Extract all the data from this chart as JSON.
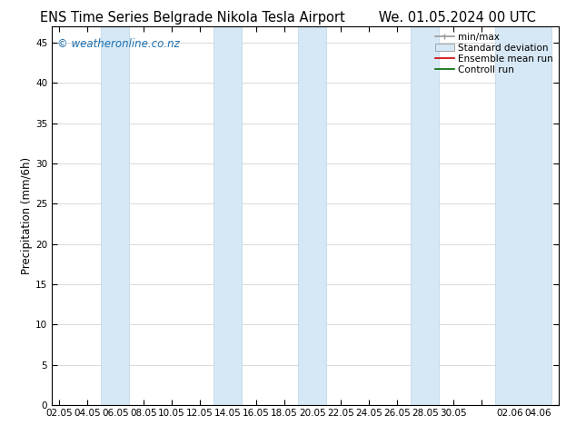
{
  "title_left": "ENS Time Series Belgrade Nikola Tesla Airport",
  "title_right": "We. 01.05.2024 00 UTC",
  "ylabel": "Precipitation (mm/6h)",
  "watermark": "© weatheronline.co.nz",
  "x_tick_labels": [
    "02.05",
    "04.05",
    "06.05",
    "08.05",
    "10.05",
    "12.05",
    "14.05",
    "16.05",
    "18.05",
    "20.05",
    "22.05",
    "24.05",
    "26.05",
    "28.05",
    "30.05",
    "",
    "02.06",
    "04.06"
  ],
  "x_tick_positions": [
    0,
    2,
    4,
    6,
    8,
    10,
    12,
    14,
    16,
    18,
    20,
    22,
    24,
    26,
    28,
    30,
    32,
    34
  ],
  "ylim": [
    0,
    47
  ],
  "yticks": [
    0,
    5,
    10,
    15,
    20,
    25,
    30,
    35,
    40,
    45
  ],
  "background_color": "#ffffff",
  "plot_bg_color": "#ffffff",
  "shaded_band_color": "#d6e8f5",
  "shaded_band_edge_color": "#b8d4e8",
  "shaded_bands_x": [
    [
      3.0,
      5.0
    ],
    [
      11.0,
      13.0
    ],
    [
      17.0,
      19.0
    ],
    [
      25.0,
      27.0
    ],
    [
      31.0,
      35.0
    ]
  ],
  "legend_items": [
    {
      "label": "min/max",
      "color": "#999999",
      "type": "errorbar"
    },
    {
      "label": "Standard deviation",
      "color": "#d6e8f5",
      "type": "bar"
    },
    {
      "label": "Ensemble mean run",
      "color": "#cc0000",
      "type": "line"
    },
    {
      "label": "Controll run",
      "color": "#006600",
      "type": "line"
    }
  ],
  "title_fontsize": 10.5,
  "tick_fontsize": 7.5,
  "legend_fontsize": 7.5,
  "ylabel_fontsize": 8.5,
  "watermark_color": "#1a6faf",
  "watermark_fontsize": 8.5,
  "xlim": [
    -0.5,
    35.5
  ]
}
